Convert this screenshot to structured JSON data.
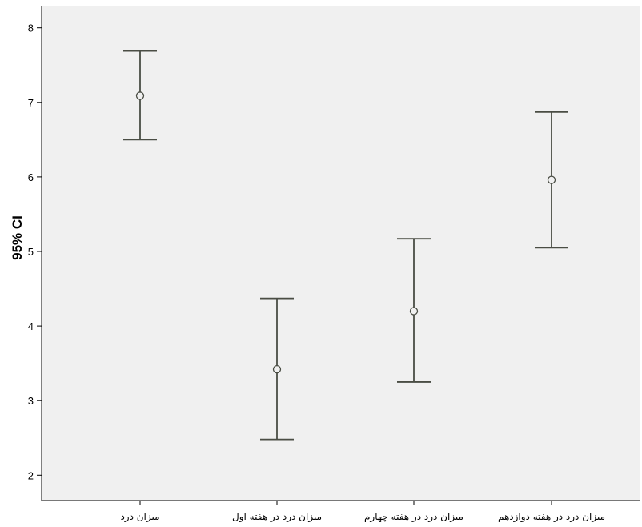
{
  "chart_data": {
    "type": "errorbar",
    "title": "",
    "xlabel": "",
    "ylabel": "95% CI",
    "ylim": [
      1.75,
      8.3
    ],
    "yticks": [
      2,
      3,
      4,
      5,
      6,
      7,
      8
    ],
    "ytick_labels": [
      "2",
      "3",
      "4",
      "5",
      "6",
      "7",
      "8"
    ],
    "grid": false,
    "categories": [
      "میزان درد",
      "میزان درد در هفته اول",
      "میزان درد در هفته چهارم",
      "میزان درد در هفته دوازدهم"
    ],
    "series": [
      {
        "mean": [
          7.09,
          3.42,
          4.2,
          5.96
        ],
        "lower": [
          6.5,
          2.48,
          3.25,
          5.05
        ],
        "upper": [
          7.69,
          4.37,
          5.17,
          6.87
        ]
      }
    ],
    "colors": {
      "plot_background": "#f0f0f0",
      "bar_color": "#4a4d44",
      "axis_color": "#000000"
    }
  }
}
